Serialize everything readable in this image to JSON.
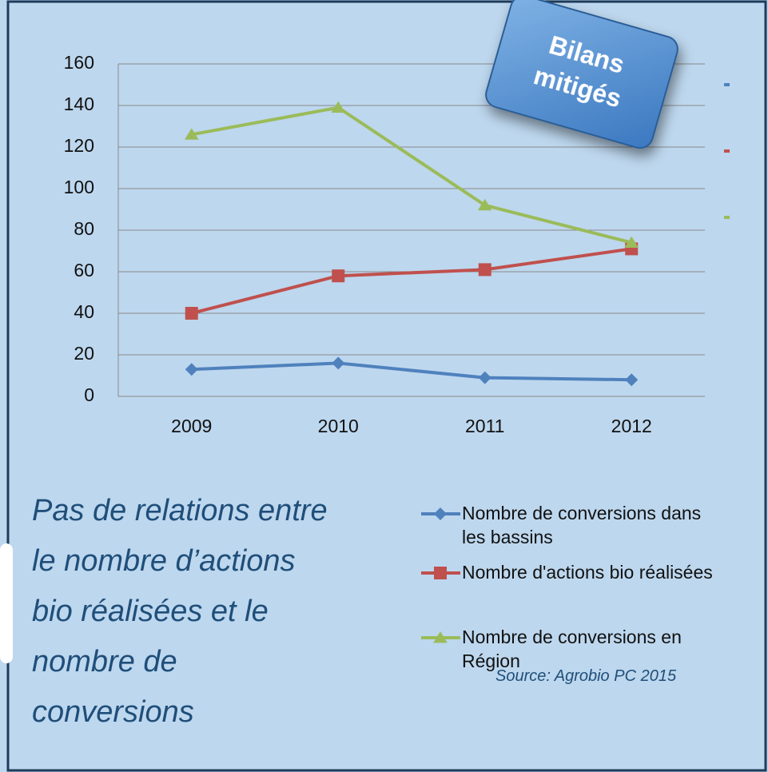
{
  "chart_data": {
    "type": "line",
    "badge": [
      "Bilans",
      "mitigés"
    ],
    "categories": [
      "2009",
      "2010",
      "2011",
      "2012"
    ],
    "series": [
      {
        "name": "Nombre de conversions dans les bassins",
        "color": "#4f81bd",
        "marker": "diamond",
        "values": [
          13,
          16,
          9,
          8
        ]
      },
      {
        "name": "Nombre d'actions bio réalisées",
        "color": "#c0504d",
        "marker": "square",
        "values": [
          40,
          58,
          61,
          71
        ]
      },
      {
        "name": "Nombre de conversions en Région",
        "color": "#9bbb59",
        "marker": "triangle",
        "values": [
          126,
          139,
          92,
          74
        ]
      }
    ],
    "ylim": [
      0,
      160
    ],
    "yticks": [
      0,
      20,
      40,
      60,
      80,
      100,
      120,
      140,
      160
    ],
    "grid": true,
    "annotation": [
      "Pas de relations entre",
      "le nombre d’actions",
      "bio réalisées et le",
      "nombre de",
      "conversions"
    ],
    "source": "Source: Agrobio PC 2015"
  }
}
